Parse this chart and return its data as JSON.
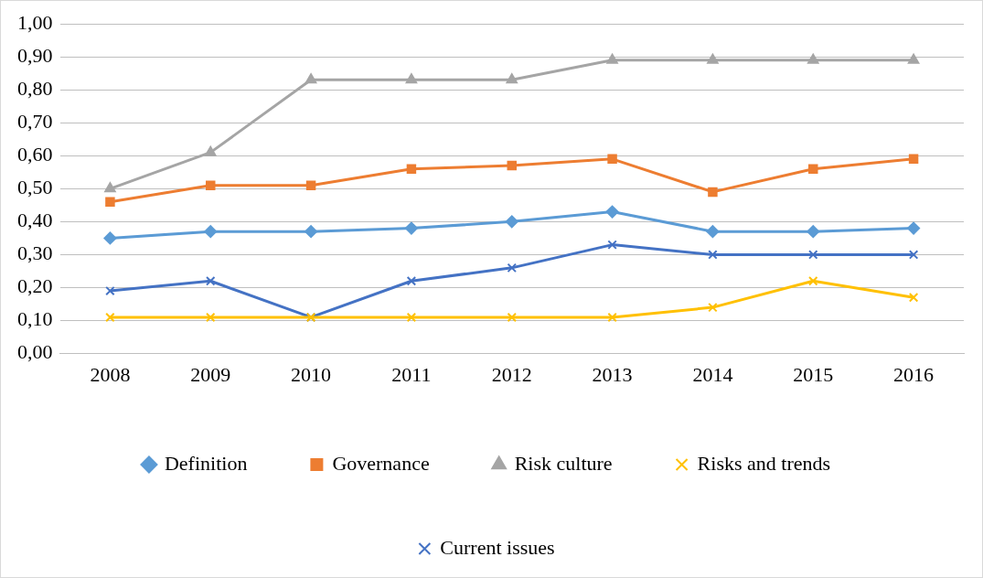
{
  "chart_data": {
    "type": "line",
    "categories": [
      "2008",
      "2009",
      "2010",
      "2011",
      "2012",
      "2013",
      "2014",
      "2015",
      "2016"
    ],
    "series": [
      {
        "name": "Definition",
        "color": "#5b9bd5",
        "marker": "diamond",
        "values": [
          0.35,
          0.37,
          0.37,
          0.38,
          0.4,
          0.43,
          0.37,
          0.37,
          0.38
        ]
      },
      {
        "name": "Governance",
        "color": "#ed7d31",
        "marker": "square",
        "values": [
          0.46,
          0.51,
          0.51,
          0.56,
          0.57,
          0.59,
          0.49,
          0.56,
          0.59
        ]
      },
      {
        "name": "Risk culture",
        "color": "#a5a5a5",
        "marker": "triangle",
        "values": [
          0.5,
          0.61,
          0.83,
          0.83,
          0.83,
          0.89,
          0.89,
          0.89,
          0.89
        ]
      },
      {
        "name": "Risks and trends",
        "color": "#ffc000",
        "marker": "cross",
        "values": [
          0.11,
          0.11,
          0.11,
          0.11,
          0.11,
          0.11,
          0.14,
          0.22,
          0.17
        ]
      },
      {
        "name": "Current issues",
        "color": "#4472c4",
        "marker": "cross",
        "values": [
          0.19,
          0.22,
          0.11,
          0.22,
          0.26,
          0.33,
          0.3,
          0.3,
          0.3
        ]
      }
    ],
    "ylim": [
      0,
      1
    ],
    "yticks": [
      {
        "value": 0,
        "label": "0,00"
      },
      {
        "value": 0.1,
        "label": "0,10"
      },
      {
        "value": 0.2,
        "label": "0,20"
      },
      {
        "value": 0.3,
        "label": "0,30"
      },
      {
        "value": 0.4,
        "label": "0,40"
      },
      {
        "value": 0.5,
        "label": "0,50"
      },
      {
        "value": 0.6,
        "label": "0,60"
      },
      {
        "value": 0.7,
        "label": "0,70"
      },
      {
        "value": 0.8,
        "label": "0,80"
      },
      {
        "value": 0.9,
        "label": "0,90"
      },
      {
        "value": 1,
        "label": "1,00"
      }
    ],
    "grid": "y",
    "legend": "bottom",
    "line_style": "solid"
  }
}
